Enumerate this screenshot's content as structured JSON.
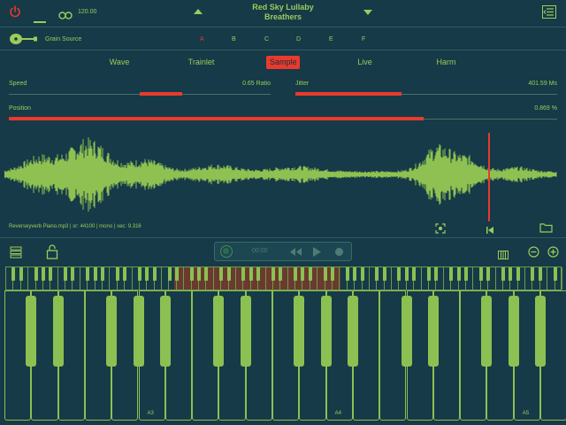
{
  "header": {
    "tempo": "120.00",
    "preset_line1": "Red Sky Lullaby",
    "preset_line2": "Breathers"
  },
  "source": {
    "label": "Grain Source",
    "slots": [
      "A",
      "B",
      "C",
      "D",
      "E",
      "F"
    ],
    "active_slot": "A"
  },
  "tabs": {
    "items": [
      "Wave",
      "Trainlet",
      "Sample",
      "Live",
      "Harm"
    ],
    "active": "Sample"
  },
  "params": {
    "speed_label": "Speed",
    "speed_value": "0.65 Ratio",
    "jitter_label": "Jitter",
    "jitter_value": "401.59 Ms",
    "position_label": "Position",
    "position_value": "0.869 %",
    "position_fraction": 0.869
  },
  "sample": {
    "info": "Reverseyverb Piano.mp3 | sr: 44100 | mono  | sec: 9.316"
  },
  "transport": {
    "time": "00:00"
  },
  "keyboard": {
    "labels": [
      "A3",
      "A4",
      "A5"
    ]
  },
  "colors": {
    "bg": "#163a47",
    "accent": "#e83a2e",
    "green": "#9ccb5c"
  },
  "icons": {
    "power": "power-icon",
    "link": "link-icon",
    "menu": "menu-icon",
    "guitar": "guitar-icon",
    "lock": "lock-icon",
    "folder": "folder-icon"
  }
}
